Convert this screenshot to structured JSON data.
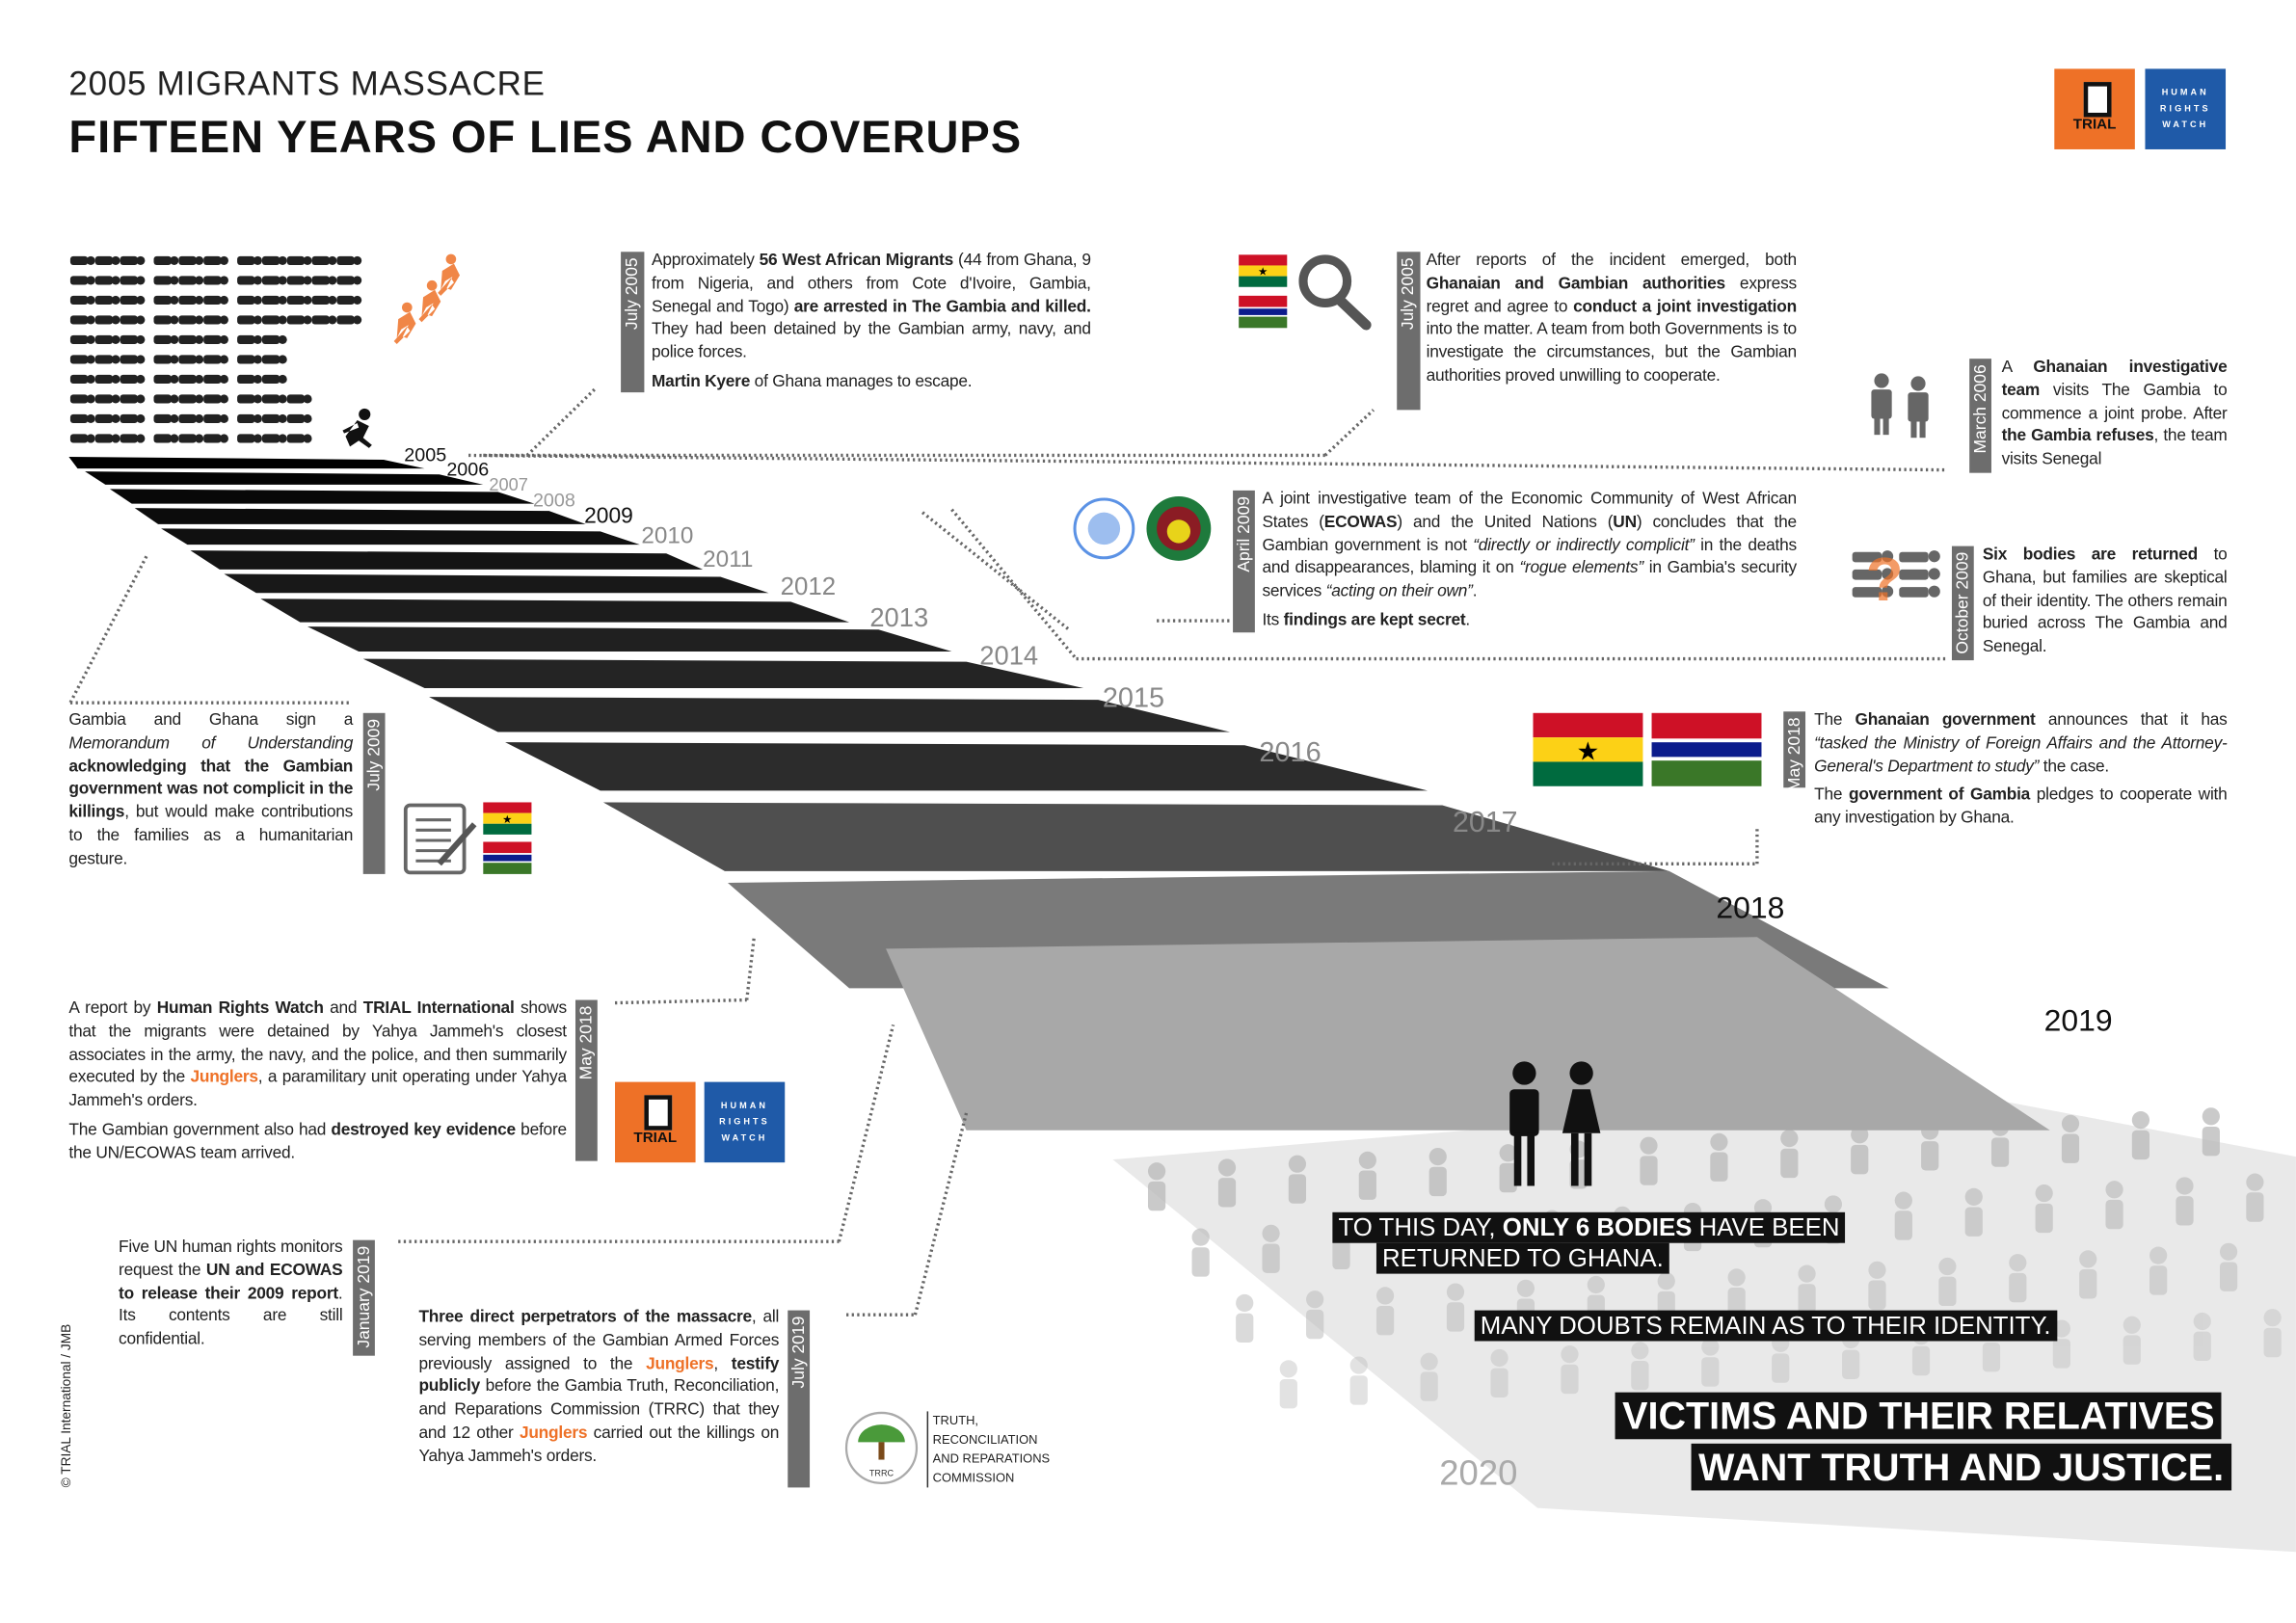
{
  "header": {
    "subtitle": "2005 MIGRANTS MASSACRE",
    "title": "FIFTEEN YEARS OF LIES AND COVERUPS",
    "logos": {
      "trial": "TRIAL",
      "hrw": [
        "HUMAN",
        "RIGHTS",
        "WATCH"
      ]
    }
  },
  "colors": {
    "accent_orange": "#ee7127",
    "hrw_blue": "#1f5aa8",
    "date_bar": "#6d6d6d",
    "ghana": [
      "#ce1126",
      "#fcd116",
      "#006b3f"
    ],
    "gambia": [
      "#ce1126",
      "#0c1c8c",
      "#3a7728"
    ]
  },
  "timeline_years": [
    "2005",
    "2006",
    "2007",
    "2008",
    "2009",
    "2010",
    "2011",
    "2012",
    "2013",
    "2014",
    "2015",
    "2016",
    "2017",
    "2018",
    "2019",
    "2020"
  ],
  "events": [
    {
      "date": "July 2005",
      "paragraphs": [
        [
          [
            "Approximately ",
            ""
          ],
          [
            "56 West African Migrants",
            "b"
          ],
          [
            " (44 from Ghana, 9 from Nigeria, and others from Cote d'Ivoire, Gambia, Senegal and Togo) ",
            ""
          ],
          [
            "are arrested in The Gambia and killed.",
            "b"
          ],
          [
            "  They had been detained by the Gambian army, navy, and police forces.",
            ""
          ]
        ],
        [
          [
            "Martin Kyere",
            "b"
          ],
          [
            " of Ghana manages to escape.",
            ""
          ]
        ]
      ]
    },
    {
      "date": "July 2005",
      "paragraphs": [
        [
          [
            "After reports of the incident emerged, both ",
            ""
          ],
          [
            "Ghanaian and Gambian authorities",
            "b"
          ],
          [
            " express regret and agree to ",
            ""
          ],
          [
            "conduct a joint investigation",
            "b"
          ],
          [
            " into the matter. A team from both Governments is to investigate the circumstances, but the Gambian authorities proved unwilling to cooperate.",
            ""
          ]
        ]
      ]
    },
    {
      "date": "March 2006",
      "paragraphs": [
        [
          [
            "A ",
            ""
          ],
          [
            "Ghanaian investigative team",
            "b"
          ],
          [
            " visits The Gambia to commence a joint probe. After ",
            ""
          ],
          [
            "the Gambia refuses",
            "b"
          ],
          [
            ", the team visits Senegal",
            ""
          ]
        ]
      ]
    },
    {
      "date": "April 2009",
      "paragraphs": [
        [
          [
            "A joint investigative team of the Economic Community of West African States (",
            ""
          ],
          [
            "ECOWAS",
            "b"
          ],
          [
            ") and the United Nations (",
            ""
          ],
          [
            "UN",
            "b"
          ],
          [
            ") concludes that the Gambian government is not ",
            ""
          ],
          [
            "“directly or indirectly complicit”",
            "i"
          ],
          [
            " in the deaths and disappearances, blaming it on ",
            ""
          ],
          [
            "“rogue elements”",
            "i"
          ],
          [
            " in Gambia's security services ",
            ""
          ],
          [
            "“acting on their own”",
            "i"
          ],
          [
            ".",
            ""
          ]
        ],
        [
          [
            "Its ",
            ""
          ],
          [
            "findings are kept secret",
            "b"
          ],
          [
            ".",
            ""
          ]
        ]
      ]
    },
    {
      "date": "October 2009",
      "paragraphs": [
        [
          [
            "Six bodies are returned",
            "b"
          ],
          [
            " to Ghana, but families are skeptical of their identity. The others remain buried across The Gambia and Senegal.",
            ""
          ]
        ]
      ]
    },
    {
      "date": "May 2018",
      "paragraphs": [
        [
          [
            "The ",
            ""
          ],
          [
            "Ghanaian government",
            "b"
          ],
          [
            " announces that it has ",
            ""
          ],
          [
            "“tasked the Ministry of Foreign Affairs and the Attorney-General's Department to study”",
            "i"
          ],
          [
            " the case.",
            ""
          ]
        ],
        [
          [
            "The ",
            ""
          ],
          [
            "government of Gambia",
            "b"
          ],
          [
            " pledges to cooperate with any investigation by Ghana.",
            ""
          ]
        ]
      ]
    },
    {
      "date": "July 2009",
      "paragraphs": [
        [
          [
            "Gambia and Ghana sign a ",
            ""
          ],
          [
            "Memorandum of Understanding",
            "i"
          ],
          [
            " ",
            ""
          ],
          [
            "acknowledging that the Gambian government was not complicit in the killings",
            "b"
          ],
          [
            ", but would make contributions to the families as a humanitarian gesture.",
            ""
          ]
        ]
      ]
    },
    {
      "date": "May 2018",
      "paragraphs": [
        [
          [
            "A report by ",
            ""
          ],
          [
            "Human Rights Watch",
            "b"
          ],
          [
            " and ",
            ""
          ],
          [
            "TRIAL International",
            "b"
          ],
          [
            " shows that the migrants were detained by Yahya Jammeh's closest associates in the army, the navy, and the police, and then summarily executed by the ",
            ""
          ],
          [
            "Junglers",
            "o"
          ],
          [
            ", a paramilitary unit operating under Yahya Jammeh's orders.",
            ""
          ]
        ],
        [
          [
            "The Gambian government also had ",
            ""
          ],
          [
            "destroyed key evidence",
            "b"
          ],
          [
            " before the UN/ECOWAS team arrived.",
            ""
          ]
        ]
      ]
    },
    {
      "date": "January 2019",
      "paragraphs": [
        [
          [
            "Five UN human rights monitors request the ",
            ""
          ],
          [
            "UN and ECOWAS  to release their 2009 report",
            "b"
          ],
          [
            ". Its contents are still confidential.",
            ""
          ]
        ]
      ]
    },
    {
      "date": "July 2019",
      "paragraphs": [
        [
          [
            "Three direct perpetrators of the massacre",
            "b"
          ],
          [
            ", all serving members of the Gambian Armed Forces previously assigned to the ",
            ""
          ],
          [
            "Junglers",
            "o"
          ],
          [
            ", ",
            ""
          ],
          [
            "testify publicly",
            "b"
          ],
          [
            " before the Gambia Truth, Reconciliation, and Reparations Commission (TRRC) that they and 12 other ",
            ""
          ],
          [
            "Junglers",
            "o"
          ],
          [
            " carried out the killings on Yahya Jammeh's orders.",
            ""
          ]
        ]
      ]
    }
  ],
  "trrc_logo": {
    "label": "TRUTH, RECONCILIATION AND REPARATIONS COMMISSION",
    "lines": [
      "TRUTH,",
      "RECONCILIATION",
      "AND REPARATIONS",
      "COMMISSION"
    ],
    "mark": "TRRC"
  },
  "ecowas_logo": {
    "top": "CEDEAO",
    "bottom": "ECOWAS"
  },
  "captions": {
    "line1_pre": "TO THIS DAY, ",
    "line1_bold": "ONLY 6 BODIES",
    "line1_post": " HAVE BEEN",
    "line2": "RETURNED TO GHANA.",
    "line3": "MANY DOUBTS REMAIN AS TO THEIR IDENTITY.",
    "line4": "VICTIMS AND THEIR RELATIVES",
    "line5": "WANT TRUTH AND JUSTICE."
  },
  "copyright": "© TRIAL International / JMB"
}
